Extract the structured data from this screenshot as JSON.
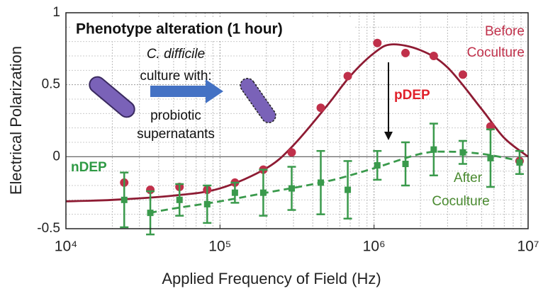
{
  "chart_data": {
    "type": "scatter",
    "title": "Phenotype alteration (1 hour)",
    "xlabel": "Applied Frequency of Field (Hz)",
    "ylabel": "Electrical Polarization",
    "xscale": "log",
    "xlim": [
      10000,
      10000000
    ],
    "ylim": [
      -0.5,
      1
    ],
    "xticks": [
      {
        "value": 10000,
        "label": "10⁴"
      },
      {
        "value": 100000,
        "label": "10⁵"
      },
      {
        "value": 1000000,
        "label": "10⁶"
      },
      {
        "value": 10000000,
        "label": "10⁷"
      }
    ],
    "yticks": [
      -0.5,
      0,
      0.5,
      1
    ],
    "grid": true,
    "series": [
      {
        "color": "#c0304a",
        "marker": "circle",
        "x": [
          23900,
          35300,
          54600,
          82600,
          125000,
          191000,
          292000,
          451000,
          675000,
          1050000,
          1600000,
          2440000,
          3770000,
          5700000,
          8800000
        ],
        "values": [
          -0.18,
          -0.23,
          -0.21,
          -0.23,
          -0.18,
          -0.09,
          0.03,
          0.34,
          0.56,
          0.79,
          0.72,
          0.7,
          0.57,
          0.21,
          -0.03
        ]
      },
      {
        "color": "#3a9a4c",
        "marker": "square",
        "x": [
          23900,
          35300,
          54600,
          82600,
          125000,
          191000,
          292000,
          451000,
          675000,
          1050000,
          1600000,
          2440000,
          3770000,
          5700000,
          8800000
        ],
        "values": [
          -0.3,
          -0.39,
          -0.3,
          -0.33,
          -0.25,
          -0.25,
          -0.22,
          -0.18,
          -0.23,
          -0.06,
          -0.05,
          0.05,
          0.03,
          -0.01,
          -0.04
        ],
        "errors": [
          0.19,
          0.15,
          0.11,
          0.13,
          0.07,
          0.16,
          0.15,
          0.22,
          0.2,
          0.1,
          0.15,
          0.18,
          0.08,
          0.2,
          0.08
        ]
      }
    ],
    "fits": [
      {
        "color": "#8e1b33",
        "dashed": false,
        "x": [
          10000,
          20000,
          50000,
          100000,
          200000,
          300000,
          500000,
          700000,
          1000000,
          1300000,
          2000000,
          3000000,
          5000000,
          7000000,
          10000000
        ],
        "values": [
          -0.31,
          -0.3,
          -0.27,
          -0.22,
          -0.08,
          0.08,
          0.36,
          0.56,
          0.72,
          0.78,
          0.74,
          0.62,
          0.33,
          0.13,
          0
        ]
      },
      {
        "color": "#3a9a4c",
        "dashed": true,
        "x": [
          35000,
          50000,
          100000,
          200000,
          500000,
          1000000,
          2000000,
          3000000,
          5000000,
          9000000
        ],
        "values": [
          -0.39,
          -0.36,
          -0.31,
          -0.25,
          -0.17,
          -0.08,
          0.02,
          0.035,
          0.02,
          -0.03
        ]
      }
    ],
    "annotations": {
      "pdep": "pDEP",
      "ndep": "nDEP",
      "before": [
        "Before",
        "Coculture"
      ],
      "after": [
        "After",
        "Coculture"
      ],
      "inset": [
        "C. difficile",
        "culture with:",
        "probiotic",
        "supernatants"
      ]
    }
  }
}
